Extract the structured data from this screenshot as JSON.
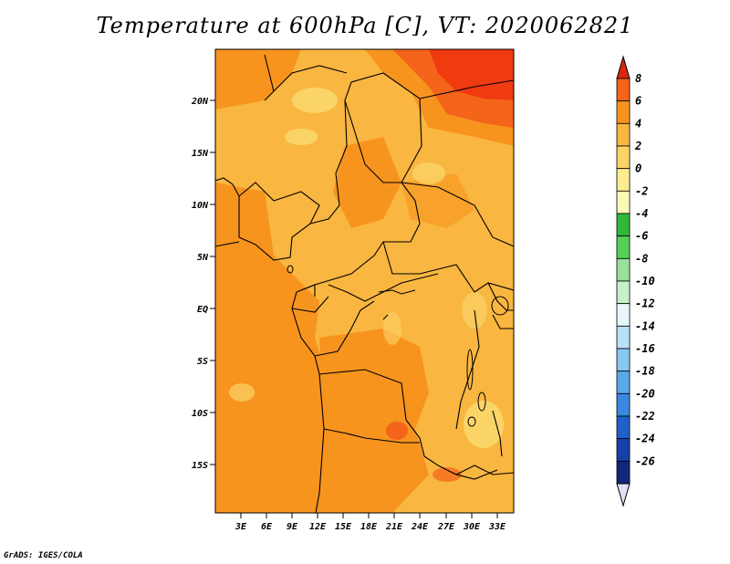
{
  "title": "Temperature at 600hPa [C], VT: 2020062821",
  "credit": "GrADS: IGES/COLA",
  "map": {
    "lat_labels": [
      "20N",
      "15N",
      "10N",
      "5N",
      "EQ",
      "5S",
      "10S",
      "15S"
    ],
    "lon_labels": [
      "3E",
      "6E",
      "9E",
      "12E",
      "15E",
      "18E",
      "21E",
      "24E",
      "27E",
      "30E",
      "33E"
    ]
  },
  "colorbar": {
    "labels": [
      "8",
      "6",
      "4",
      "2",
      "0",
      "-2",
      "-4",
      "-6",
      "-8",
      "-10",
      "-12",
      "-14",
      "-16",
      "-18",
      "-20",
      "-22",
      "-24",
      "-26"
    ],
    "colors": [
      "#f03a10",
      "#f4641a",
      "#f7941e",
      "#f9b640",
      "#fbd468",
      "#fdeb90",
      "#fdf7b8",
      "#30b838",
      "#58d058",
      "#98e098",
      "#c8f0c8",
      "#e8f8f8",
      "#b8e0f8",
      "#88c8f0",
      "#5aa8e8",
      "#3a88e0",
      "#2060c8",
      "#1840a8",
      "#102878",
      "#0a1058"
    ],
    "min_arrow_color": "#e0e0f8",
    "max_arrow_color": "#d82810"
  }
}
